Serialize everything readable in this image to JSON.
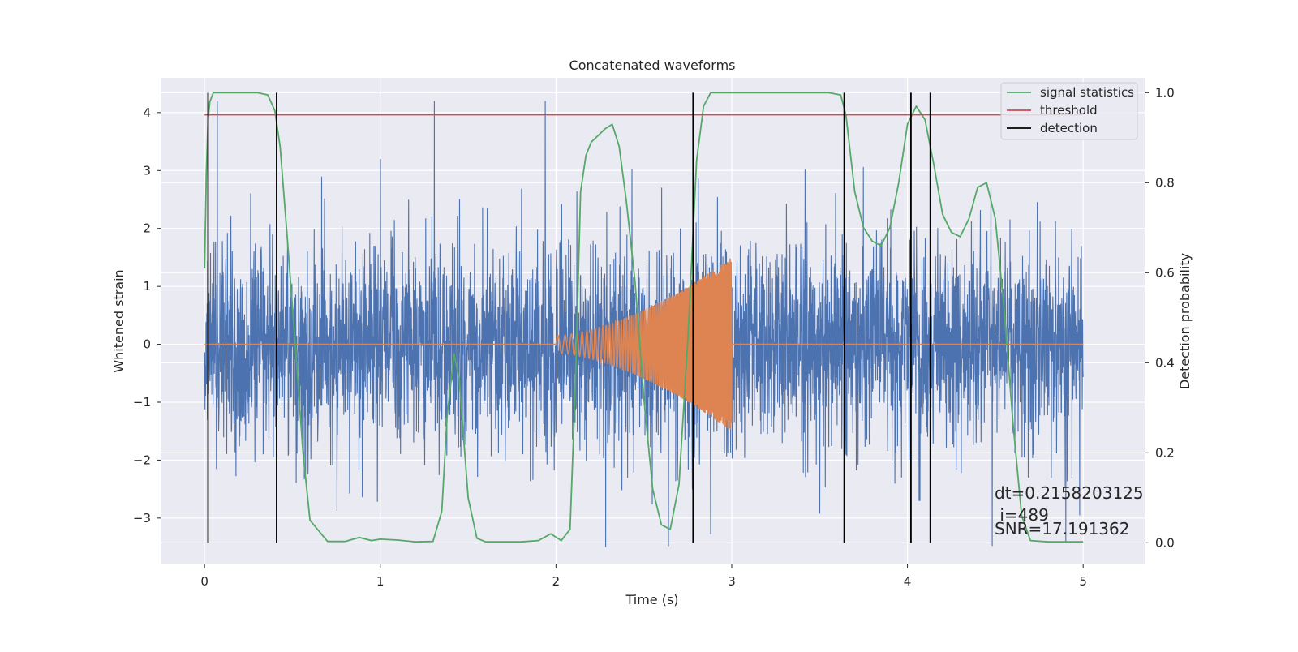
{
  "chart_data": {
    "type": "line",
    "title": "Concatenated waveforms",
    "xlabel": "Time (s)",
    "ylabel": "Whitened strain",
    "y2label": "Detection probability",
    "xlim": [
      -0.25,
      5.35
    ],
    "ylim": [
      -3.8,
      4.6
    ],
    "y2lim": [
      -0.048,
      1.033
    ],
    "x_ticks": [
      0,
      1,
      2,
      3,
      4,
      5
    ],
    "y_ticks": [
      -3,
      -2,
      -1,
      0,
      1,
      2,
      3,
      4
    ],
    "y2_ticks": [
      0.0,
      0.2,
      0.4,
      0.6,
      0.8,
      1.0
    ],
    "x_tick_labels": [
      "0",
      "1",
      "2",
      "3",
      "4",
      "5"
    ],
    "y_tick_labels": [
      "−3",
      "−2",
      "−1",
      "0",
      "1",
      "2",
      "3",
      "4"
    ],
    "y2_tick_labels": [
      "0.0",
      "0.2",
      "0.4",
      "0.6",
      "0.8",
      "1.0"
    ],
    "grid": true,
    "legend_position": "upper-right",
    "legend": [
      {
        "label": "signal statistics",
        "color": "#55a868"
      },
      {
        "label": "threshold",
        "color": "#c44e52"
      },
      {
        "label": "detection",
        "color": "#000000"
      }
    ],
    "series": [
      {
        "role": "whitened-noise",
        "color": "#4c72b0",
        "x_range": [
          0,
          5
        ],
        "typical_amplitude": 1.1,
        "peak_amplitude": 4.2
      },
      {
        "role": "injected-chirp",
        "color": "#dd8452",
        "x_range": [
          2.0,
          3.0
        ],
        "peak_amplitude": 1.5,
        "zero_elsewhere": true
      },
      {
        "name": "signal statistics",
        "axis": "right",
        "color": "#55a868",
        "x": [
          0,
          0.01,
          0.02,
          0.03,
          0.05,
          0.1,
          0.2,
          0.3,
          0.36,
          0.4,
          0.43,
          0.47,
          0.52,
          0.56,
          0.6,
          0.7,
          0.8,
          0.88,
          0.95,
          1.0,
          1.1,
          1.2,
          1.3,
          1.35,
          1.38,
          1.42,
          1.45,
          1.5,
          1.55,
          1.6,
          1.7,
          1.8,
          1.9,
          1.97,
          2.03,
          2.08,
          2.11,
          2.14,
          2.17,
          2.2,
          2.28,
          2.32,
          2.36,
          2.4,
          2.45,
          2.5,
          2.55,
          2.6,
          2.65,
          2.7,
          2.75,
          2.8,
          2.84,
          2.88,
          3.0,
          3.3,
          3.55,
          3.62,
          3.65,
          3.7,
          3.75,
          3.8,
          3.85,
          3.9,
          3.95,
          4.0,
          4.05,
          4.1,
          4.15,
          4.2,
          4.25,
          4.3,
          4.35,
          4.4,
          4.45,
          4.5,
          4.55,
          4.6,
          4.65,
          4.7,
          4.8,
          5.0
        ],
        "y": [
          0.61,
          0.82,
          0.94,
          0.98,
          1.0,
          1.0,
          1.0,
          1.0,
          0.995,
          0.96,
          0.88,
          0.68,
          0.42,
          0.2,
          0.05,
          0.003,
          0.003,
          0.012,
          0.005,
          0.008,
          0.006,
          0.002,
          0.003,
          0.07,
          0.28,
          0.42,
          0.36,
          0.1,
          0.01,
          0.002,
          0.002,
          0.002,
          0.005,
          0.02,
          0.005,
          0.03,
          0.35,
          0.78,
          0.86,
          0.89,
          0.92,
          0.93,
          0.88,
          0.76,
          0.58,
          0.32,
          0.12,
          0.04,
          0.03,
          0.13,
          0.45,
          0.85,
          0.97,
          1.0,
          1.0,
          1.0,
          1.0,
          0.995,
          0.95,
          0.78,
          0.7,
          0.67,
          0.66,
          0.7,
          0.8,
          0.93,
          0.97,
          0.94,
          0.84,
          0.73,
          0.69,
          0.68,
          0.72,
          0.79,
          0.8,
          0.72,
          0.52,
          0.27,
          0.06,
          0.005,
          0.002,
          0.002
        ]
      },
      {
        "name": "threshold",
        "axis": "right",
        "color": "#c44e52",
        "x": [
          0,
          5
        ],
        "y": [
          0.951,
          0.951
        ]
      },
      {
        "name": "detection",
        "axis": "right",
        "color": "#000000",
        "type": "vlines",
        "x": [
          0.02,
          0.41,
          2.78,
          3.64,
          4.02,
          4.13
        ],
        "y_range": [
          0.0,
          1.0
        ]
      }
    ],
    "annotations": [
      {
        "text": "dt=0.2158203125",
        "x": 4.5,
        "y": -2.62
      },
      {
        "text": " i=489",
        "x": 4.5,
        "y": -2.99
      },
      {
        "text": "SNR=17.191362",
        "x": 4.5,
        "y": -3.22
      }
    ]
  }
}
